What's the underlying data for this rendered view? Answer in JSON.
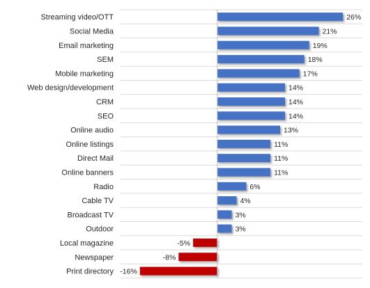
{
  "chart_data": {
    "type": "bar",
    "orientation": "horizontal",
    "categories": [
      "Streaming video/OTT",
      "Social Media",
      "Email marketing",
      "SEM",
      "Mobile marketing",
      "Web design/development",
      "CRM",
      "SEO",
      "Online audio",
      "Online listings",
      "Direct Mail",
      "Online banners",
      "Radio",
      "Cable TV",
      "Broadcast TV",
      "Outdoor",
      "Local magazine",
      "Newspaper",
      "Print directory"
    ],
    "values": [
      26,
      21,
      19,
      18,
      17,
      14,
      14,
      14,
      13,
      11,
      11,
      11,
      6,
      4,
      3,
      3,
      -5,
      -8,
      -16
    ],
    "value_labels": [
      "26%",
      "21%",
      "19%",
      "18%",
      "17%",
      "14%",
      "14%",
      "14%",
      "13%",
      "11%",
      "11%",
      "11%",
      "6%",
      "4%",
      "3%",
      "3%",
      "-5%",
      "-8%",
      "-16%"
    ],
    "unit": "%",
    "xlim": [
      -20,
      30
    ],
    "title": "",
    "xlabel": "",
    "ylabel": "",
    "grid": "horizontal",
    "legend": "none",
    "colors": {
      "positive": "#4472c4",
      "negative": "#c00000",
      "gridline": "#d9d9d9"
    }
  }
}
